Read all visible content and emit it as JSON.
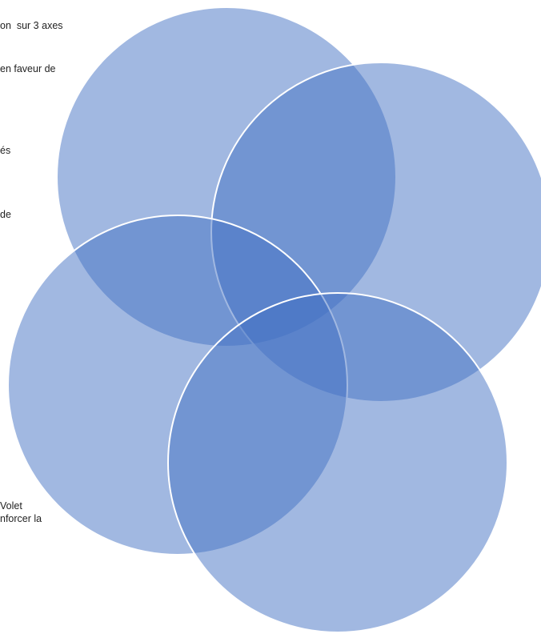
{
  "text_fragments": [
    "on  sur 3 axes",
    "en faveur de",
    "és",
    "de",
    "Volet",
    "nforcer la"
  ]
}
